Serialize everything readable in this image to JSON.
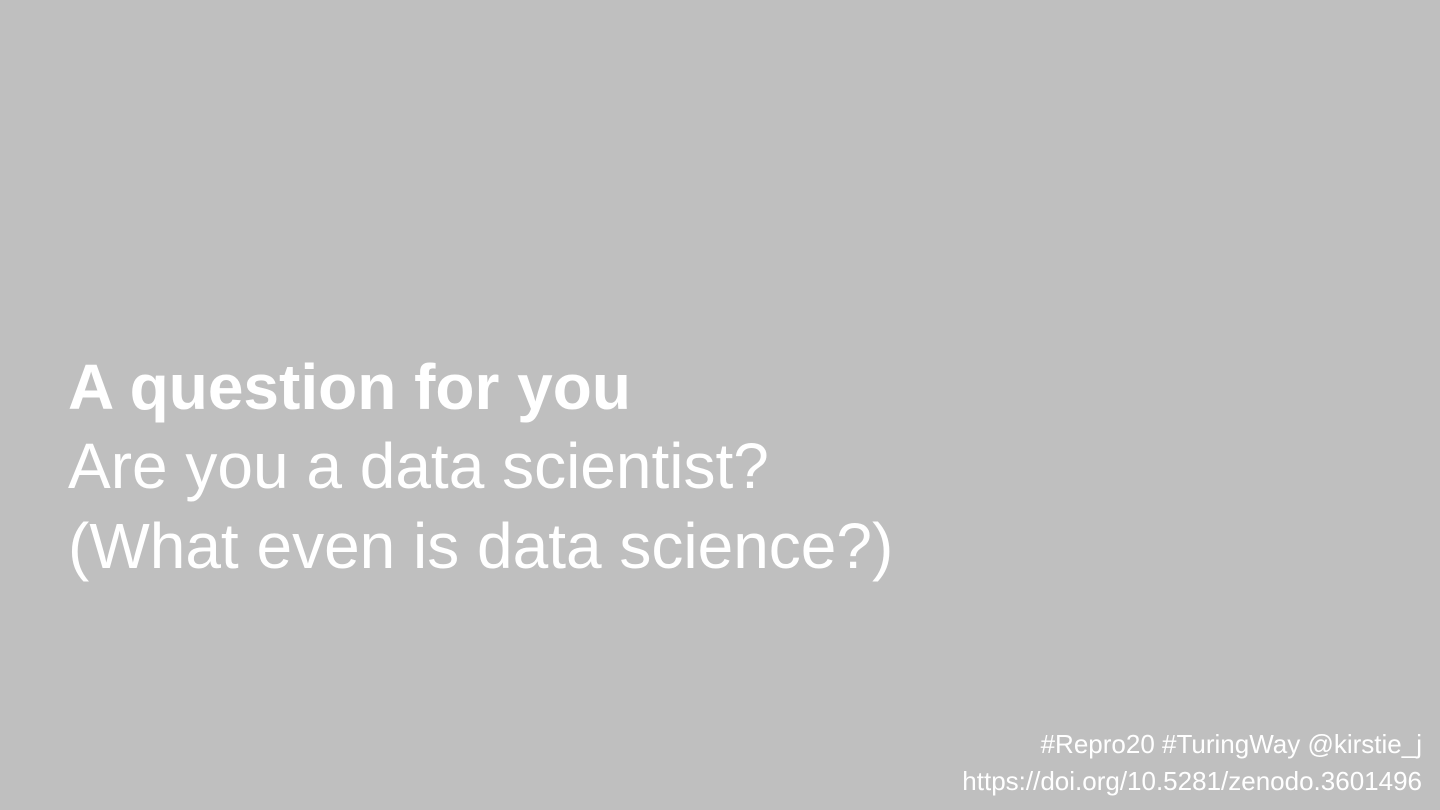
{
  "slide": {
    "background_color": "#bfbfbf",
    "text_color": "#ffffff",
    "heading": "A question for you",
    "lines": [
      "Are you a data scientist?",
      "(What even is data science?)"
    ],
    "footer": {
      "tags": "#Repro20 #TuringWay @kirstie_j",
      "doi": "https://doi.org/10.5281/zenodo.3601496"
    }
  }
}
